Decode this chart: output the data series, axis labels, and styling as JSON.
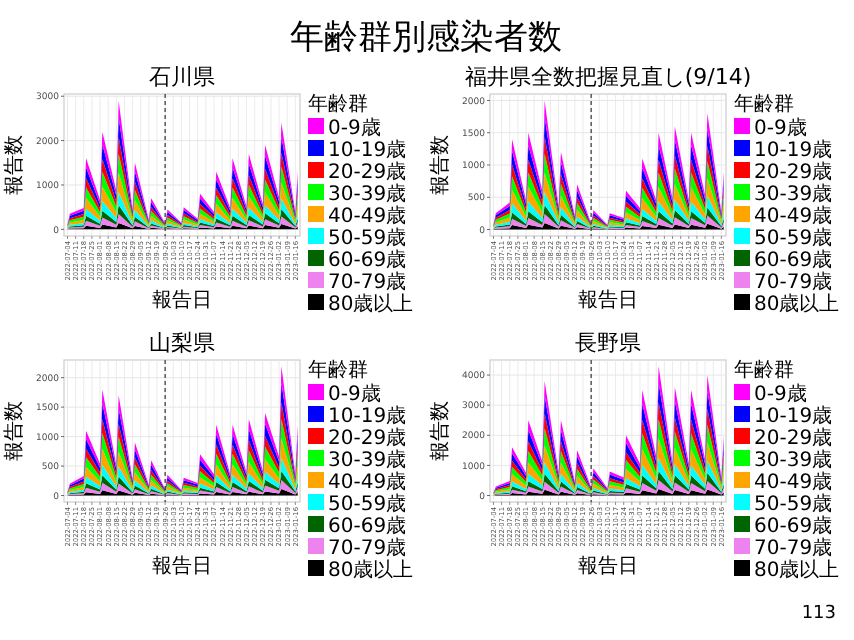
{
  "chart_data": [
    {
      "type": "other",
      "title": "年齢群別感染者数",
      "annotations": [
        "113"
      ]
    },
    {
      "type": "area",
      "stacked": true,
      "title": "石川県",
      "xlabel": "報告日",
      "ylabel": "報告数",
      "legend_title": "年齢群",
      "legend": "right",
      "grid": true,
      "x": [
        "2022-07-04",
        "2022-07-06",
        "2022-07-18",
        "2022-07-20",
        "2022-08-01",
        "2022-08-03",
        "2022-08-15",
        "2022-08-17",
        "2022-08-29",
        "2022-08-31",
        "2022-09-12",
        "2022-09-14",
        "2022-09-26",
        "2022-09-28",
        "2022-10-10",
        "2022-10-12",
        "2022-10-24",
        "2022-10-26",
        "2022-11-07",
        "2022-11-09",
        "2022-11-21",
        "2022-11-23",
        "2022-12-05",
        "2022-12-07",
        "2022-12-19",
        "2022-12-21",
        "2023-01-02",
        "2023-01-04",
        "2023-01-16",
        "2023-01-18"
      ],
      "xlim": [
        "2022-07-01",
        "2023-01-20"
      ],
      "xticks": [
        "2022-07-04",
        "2022-07-11",
        "2022-07-18",
        "2022-07-25",
        "2022-08-01",
        "2022-08-08",
        "2022-08-15",
        "2022-08-22",
        "2022-08-29",
        "2022-09-05",
        "2022-09-12",
        "2022-09-19",
        "2022-09-26",
        "2022-10-03",
        "2022-10-10",
        "2022-10-17",
        "2022-10-24",
        "2022-10-31",
        "2022-11-07",
        "2022-11-14",
        "2022-11-21",
        "2022-11-28",
        "2022-12-05",
        "2022-12-12",
        "2022-12-19",
        "2022-12-26",
        "2023-01-02",
        "2023-01-09",
        "2023-01-16"
      ],
      "ylim": [
        -150,
        3050
      ],
      "yticks": [
        0,
        1000,
        2000,
        3000
      ],
      "ref_lines": [
        {
          "axis": "x",
          "value": "2022-09-26",
          "line_style": "dashed",
          "color": "#333333"
        }
      ],
      "series": [
        {
          "name": "80歳以上",
          "color": "#000000",
          "values": [
            5,
            17,
            24,
            80,
            33,
            110,
            42,
            145,
            22,
            75,
            9,
            35,
            7,
            22,
            7,
            25,
            12,
            40,
            21,
            65,
            24,
            80,
            24,
            85,
            27,
            95,
            36,
            120,
            21,
            65
          ]
        },
        {
          "name": "70-79歳",
          "color": "#ee82ee",
          "values": [
            7,
            25,
            34,
            112,
            46,
            154,
            61,
            203,
            31,
            105,
            15,
            49,
            10,
            31,
            11,
            35,
            17,
            56,
            27,
            91,
            34,
            112,
            36,
            119,
            40,
            133,
            50,
            168,
            27,
            91
          ]
        },
        {
          "name": "60-69歳",
          "color": "#006400",
          "values": [
            7,
            24,
            34,
            112,
            46,
            154,
            61,
            203,
            31,
            105,
            15,
            49,
            9,
            31,
            11,
            35,
            17,
            56,
            27,
            91,
            34,
            112,
            36,
            119,
            40,
            133,
            50,
            168,
            27,
            91
          ]
        },
        {
          "name": "50-59歳",
          "color": "#00ffff",
          "values": [
            10,
            35,
            48,
            160,
            66,
            220,
            87,
            290,
            45,
            150,
            21,
            70,
            13,
            45,
            15,
            50,
            24,
            80,
            39,
            130,
            48,
            160,
            51,
            170,
            57,
            190,
            72,
            240,
            39,
            130
          ]
        },
        {
          "name": "40-49歳",
          "color": "#ffa500",
          "values": [
            16,
            53,
            72,
            240,
            99,
            330,
            131,
            435,
            68,
            225,
            32,
            105,
            20,
            68,
            22,
            75,
            36,
            120,
            58,
            195,
            72,
            240,
            77,
            255,
            86,
            285,
            108,
            360,
            58,
            195
          ]
        },
        {
          "name": "30-39歳",
          "color": "#00ff00",
          "values": [
            16,
            53,
            72,
            240,
            99,
            330,
            131,
            435,
            68,
            225,
            32,
            105,
            20,
            68,
            22,
            75,
            36,
            120,
            58,
            195,
            72,
            240,
            77,
            255,
            86,
            285,
            108,
            360,
            58,
            195
          ]
        },
        {
          "name": "20-29歳",
          "color": "#ff0000",
          "values": [
            14,
            45,
            62,
            208,
            86,
            286,
            113,
            377,
            58,
            195,
            27,
            91,
            18,
            58,
            20,
            65,
            31,
            104,
            51,
            169,
            62,
            208,
            66,
            221,
            74,
            247,
            94,
            312,
            51,
            169
          ]
        },
        {
          "name": "10-19歳",
          "color": "#0000ff",
          "values": [
            16,
            53,
            72,
            240,
            99,
            330,
            131,
            435,
            68,
            225,
            32,
            105,
            20,
            68,
            22,
            75,
            36,
            120,
            58,
            195,
            72,
            240,
            77,
            255,
            86,
            285,
            108,
            360,
            58,
            195
          ]
        },
        {
          "name": "0-9歳",
          "color": "#ff00ff",
          "values": [
            14,
            45,
            62,
            208,
            86,
            286,
            113,
            377,
            59,
            195,
            27,
            91,
            18,
            59,
            20,
            65,
            31,
            104,
            51,
            169,
            62,
            208,
            66,
            221,
            74,
            247,
            94,
            312,
            51,
            169
          ]
        }
      ]
    },
    {
      "type": "area",
      "stacked": true,
      "title": "福井県全数把握見直し(9/14)",
      "xlabel": "報告日",
      "ylabel": "報告数",
      "legend_title": "年齢群",
      "legend": "right",
      "grid": true,
      "x": [
        "2022-07-04",
        "2022-07-06",
        "2022-07-18",
        "2022-07-20",
        "2022-08-01",
        "2022-08-03",
        "2022-08-15",
        "2022-08-17",
        "2022-08-29",
        "2022-08-31",
        "2022-09-12",
        "2022-09-14",
        "2022-09-26",
        "2022-09-28",
        "2022-10-10",
        "2022-10-12",
        "2022-10-24",
        "2022-10-26",
        "2022-11-07",
        "2022-11-09",
        "2022-11-21",
        "2022-11-23",
        "2022-12-05",
        "2022-12-07",
        "2022-12-19",
        "2022-12-21",
        "2023-01-02",
        "2023-01-04",
        "2023-01-16",
        "2023-01-18"
      ],
      "xlim": [
        "2022-07-01",
        "2023-01-20"
      ],
      "xticks": [
        "2022-07-04",
        "2022-07-11",
        "2022-07-18",
        "2022-07-25",
        "2022-08-01",
        "2022-08-08",
        "2022-08-15",
        "2022-08-22",
        "2022-08-29",
        "2022-09-05",
        "2022-09-12",
        "2022-09-19",
        "2022-09-26",
        "2022-10-03",
        "2022-10-10",
        "2022-10-17",
        "2022-10-24",
        "2022-10-31",
        "2022-11-07",
        "2022-11-14",
        "2022-11-21",
        "2022-11-28",
        "2022-12-05",
        "2022-12-12",
        "2022-12-19",
        "2022-12-26",
        "2023-01-02",
        "2023-01-09",
        "2023-01-16"
      ],
      "ylim": [
        -100,
        2100
      ],
      "yticks": [
        0,
        500,
        1000,
        1500,
        2000
      ],
      "ref_lines": [
        {
          "axis": "x",
          "value": "2022-09-26",
          "line_style": "dashed",
          "color": "#333333"
        }
      ],
      "series": [
        {
          "name": "80歳以上",
          "color": "#000000",
          "values": [
            4,
            13,
            21,
            70,
            23,
            75,
            30,
            100,
            18,
            60,
            11,
            35,
            5,
            15,
            4,
            13,
            9,
            30,
            17,
            55,
            23,
            75,
            24,
            80,
            23,
            75,
            27,
            90,
            14,
            45
          ]
        },
        {
          "name": "70-79歳",
          "color": "#ee82ee",
          "values": [
            5,
            18,
            29,
            98,
            32,
            105,
            42,
            140,
            25,
            84,
            15,
            49,
            6,
            21,
            5,
            18,
            13,
            42,
            23,
            77,
            32,
            105,
            34,
            112,
            32,
            105,
            38,
            126,
            19,
            63
          ]
        },
        {
          "name": "60-69歳",
          "color": "#006400",
          "values": [
            5,
            18,
            29,
            98,
            32,
            105,
            42,
            140,
            25,
            84,
            15,
            49,
            6,
            21,
            5,
            18,
            13,
            42,
            23,
            77,
            32,
            105,
            34,
            112,
            32,
            105,
            38,
            126,
            19,
            63
          ]
        },
        {
          "name": "50-59歳",
          "color": "#00ffff",
          "values": [
            8,
            25,
            42,
            140,
            45,
            150,
            60,
            200,
            36,
            120,
            21,
            70,
            9,
            30,
            8,
            25,
            18,
            60,
            33,
            110,
            45,
            150,
            48,
            160,
            45,
            150,
            54,
            180,
            27,
            90
          ]
        },
        {
          "name": "40-49歳",
          "color": "#ffa500",
          "values": [
            11,
            38,
            63,
            210,
            68,
            225,
            90,
            300,
            54,
            180,
            32,
            105,
            14,
            45,
            11,
            38,
            27,
            90,
            50,
            165,
            68,
            225,
            72,
            240,
            68,
            225,
            81,
            270,
            41,
            135
          ]
        },
        {
          "name": "30-39歳",
          "color": "#00ff00",
          "values": [
            11,
            38,
            63,
            210,
            68,
            225,
            90,
            300,
            54,
            180,
            32,
            105,
            14,
            45,
            11,
            38,
            27,
            90,
            50,
            165,
            68,
            225,
            72,
            240,
            68,
            225,
            81,
            270,
            41,
            135
          ]
        },
        {
          "name": "20-29歳",
          "color": "#ff0000",
          "values": [
            10,
            33,
            55,
            182,
            59,
            195,
            78,
            260,
            47,
            156,
            27,
            91,
            12,
            39,
            10,
            33,
            23,
            78,
            43,
            143,
            59,
            195,
            62,
            208,
            59,
            195,
            70,
            234,
            35,
            117
          ]
        },
        {
          "name": "10-19歳",
          "color": "#0000ff",
          "values": [
            11,
            38,
            63,
            210,
            68,
            225,
            90,
            300,
            54,
            180,
            32,
            105,
            14,
            45,
            11,
            38,
            27,
            90,
            50,
            165,
            68,
            225,
            72,
            240,
            68,
            225,
            81,
            270,
            41,
            135
          ]
        },
        {
          "name": "0-9歳",
          "color": "#ff00ff",
          "values": [
            10,
            33,
            55,
            182,
            59,
            195,
            78,
            260,
            47,
            156,
            27,
            91,
            12,
            39,
            10,
            33,
            23,
            78,
            43,
            143,
            59,
            195,
            62,
            208,
            59,
            195,
            70,
            234,
            35,
            117
          ]
        }
      ]
    },
    {
      "type": "area",
      "stacked": true,
      "title": "山梨県",
      "xlabel": "報告日",
      "ylabel": "報告数",
      "legend_title": "年齢群",
      "legend": "right",
      "grid": true,
      "x": [
        "2022-07-04",
        "2022-07-06",
        "2022-07-18",
        "2022-07-20",
        "2022-08-01",
        "2022-08-03",
        "2022-08-15",
        "2022-08-17",
        "2022-08-29",
        "2022-08-31",
        "2022-09-12",
        "2022-09-14",
        "2022-09-26",
        "2022-09-28",
        "2022-10-10",
        "2022-10-12",
        "2022-10-24",
        "2022-10-26",
        "2022-11-07",
        "2022-11-09",
        "2022-11-21",
        "2022-11-23",
        "2022-12-05",
        "2022-12-07",
        "2022-12-19",
        "2022-12-21",
        "2023-01-02",
        "2023-01-04",
        "2023-01-16",
        "2023-01-18"
      ],
      "xlim": [
        "2022-07-01",
        "2023-01-20"
      ],
      "xticks": [
        "2022-07-04",
        "2022-07-11",
        "2022-07-18",
        "2022-07-25",
        "2022-08-01",
        "2022-08-08",
        "2022-08-15",
        "2022-08-22",
        "2022-08-29",
        "2022-09-05",
        "2022-09-12",
        "2022-09-19",
        "2022-09-26",
        "2022-10-03",
        "2022-10-10",
        "2022-10-17",
        "2022-10-24",
        "2022-10-31",
        "2022-11-07",
        "2022-11-14",
        "2022-11-21",
        "2022-11-28",
        "2022-12-05",
        "2022-12-12",
        "2022-12-19",
        "2022-12-26",
        "2023-01-02",
        "2023-01-09",
        "2023-01-16"
      ],
      "ylim": [
        -110,
        2300
      ],
      "yticks": [
        0,
        500,
        1000,
        1500,
        2000
      ],
      "ref_lines": [
        {
          "axis": "x",
          "value": "2022-09-26",
          "line_style": "dashed",
          "color": "#333333"
        }
      ],
      "series": [
        {
          "name": "80歳以上",
          "color": "#000000",
          "values": [
            3,
            10,
            17,
            55,
            27,
            90,
            26,
            85,
            14,
            45,
            9,
            30,
            5,
            18,
            5,
            15,
            11,
            35,
            18,
            60,
            18,
            60,
            20,
            65,
            21,
            70,
            33,
            110,
            18,
            60
          ]
        },
        {
          "name": "70-79歳",
          "color": "#ee82ee",
          "values": [
            4,
            14,
            23,
            77,
            38,
            126,
            36,
            119,
            19,
            63,
            13,
            42,
            7,
            25,
            6,
            21,
            15,
            49,
            25,
            84,
            25,
            84,
            27,
            91,
            29,
            98,
            46,
            154,
            25,
            84
          ]
        },
        {
          "name": "60-69歳",
          "color": "#006400",
          "values": [
            4,
            14,
            23,
            77,
            38,
            126,
            36,
            119,
            19,
            63,
            13,
            42,
            7,
            25,
            6,
            21,
            15,
            49,
            25,
            84,
            25,
            84,
            27,
            91,
            29,
            98,
            46,
            154,
            25,
            84
          ]
        },
        {
          "name": "50-59歳",
          "color": "#00ffff",
          "values": [
            6,
            20,
            33,
            110,
            54,
            180,
            51,
            170,
            27,
            90,
            18,
            60,
            11,
            35,
            9,
            30,
            21,
            70,
            36,
            120,
            36,
            120,
            39,
            130,
            42,
            140,
            66,
            220,
            36,
            120
          ]
        },
        {
          "name": "40-49歳",
          "color": "#ffa500",
          "values": [
            9,
            30,
            50,
            165,
            81,
            270,
            77,
            255,
            41,
            135,
            27,
            90,
            16,
            53,
            14,
            45,
            32,
            105,
            54,
            180,
            54,
            180,
            59,
            195,
            63,
            210,
            99,
            330,
            54,
            180
          ]
        },
        {
          "name": "30-39歳",
          "color": "#00ff00",
          "values": [
            9,
            30,
            50,
            165,
            81,
            270,
            77,
            255,
            41,
            135,
            27,
            90,
            16,
            53,
            14,
            45,
            32,
            105,
            54,
            180,
            54,
            180,
            59,
            195,
            63,
            210,
            99,
            330,
            54,
            180
          ]
        },
        {
          "name": "20-29歳",
          "color": "#ff0000",
          "values": [
            8,
            26,
            43,
            143,
            70,
            234,
            66,
            221,
            35,
            117,
            23,
            78,
            14,
            46,
            12,
            39,
            27,
            91,
            47,
            156,
            47,
            156,
            51,
            169,
            55,
            182,
            86,
            286,
            47,
            156
          ]
        },
        {
          "name": "10-19歳",
          "color": "#0000ff",
          "values": [
            9,
            30,
            50,
            165,
            81,
            270,
            77,
            255,
            41,
            135,
            27,
            90,
            16,
            53,
            14,
            45,
            32,
            105,
            54,
            180,
            54,
            180,
            59,
            195,
            63,
            210,
            99,
            330,
            54,
            180
          ]
        },
        {
          "name": "0-9歳",
          "color": "#ff00ff",
          "values": [
            8,
            26,
            43,
            143,
            70,
            234,
            66,
            221,
            35,
            117,
            23,
            78,
            14,
            46,
            12,
            39,
            27,
            91,
            47,
            156,
            47,
            156,
            51,
            169,
            55,
            182,
            86,
            286,
            47,
            156
          ]
        }
      ]
    },
    {
      "type": "area",
      "stacked": true,
      "title": "長野県",
      "xlabel": "報告日",
      "ylabel": "報告数",
      "legend_title": "年齢群",
      "legend": "right",
      "grid": true,
      "x": [
        "2022-07-04",
        "2022-07-06",
        "2022-07-18",
        "2022-07-20",
        "2022-08-01",
        "2022-08-03",
        "2022-08-15",
        "2022-08-17",
        "2022-08-29",
        "2022-08-31",
        "2022-09-12",
        "2022-09-14",
        "2022-09-26",
        "2022-09-28",
        "2022-10-10",
        "2022-10-12",
        "2022-10-24",
        "2022-10-26",
        "2022-11-07",
        "2022-11-09",
        "2022-11-21",
        "2022-11-23",
        "2022-12-05",
        "2022-12-07",
        "2022-12-19",
        "2022-12-21",
        "2023-01-02",
        "2023-01-04",
        "2023-01-16",
        "2023-01-18"
      ],
      "xlim": [
        "2022-07-01",
        "2023-01-20"
      ],
      "xticks": [
        "2022-07-04",
        "2022-07-11",
        "2022-07-18",
        "2022-07-25",
        "2022-08-01",
        "2022-08-08",
        "2022-08-15",
        "2022-08-22",
        "2022-08-29",
        "2022-09-05",
        "2022-09-12",
        "2022-09-19",
        "2022-09-26",
        "2022-10-03",
        "2022-10-10",
        "2022-10-17",
        "2022-10-24",
        "2022-10-31",
        "2022-11-07",
        "2022-11-14",
        "2022-11-21",
        "2022-11-28",
        "2022-12-05",
        "2022-12-12",
        "2022-12-19",
        "2022-12-26",
        "2023-01-02",
        "2023-01-09",
        "2023-01-16"
      ],
      "ylim": [
        -215,
        4500
      ],
      "yticks": [
        0,
        1000,
        2000,
        3000,
        4000
      ],
      "ref_lines": [
        {
          "axis": "x",
          "value": "2022-09-26",
          "line_style": "dashed",
          "color": "#333333"
        }
      ],
      "series": [
        {
          "name": "80歳以上",
          "color": "#000000",
          "values": [
            5,
            15,
            24,
            80,
            38,
            125,
            57,
            190,
            38,
            125,
            23,
            75,
            14,
            45,
            12,
            40,
            30,
            100,
            53,
            175,
            65,
            215,
            54,
            180,
            53,
            175,
            60,
            200,
            30,
            100
          ]
        },
        {
          "name": "70-79歳",
          "color": "#ee82ee",
          "values": [
            6,
            21,
            34,
            112,
            53,
            175,
            80,
            266,
            53,
            175,
            32,
            105,
            19,
            63,
            17,
            56,
            42,
            140,
            74,
            245,
            90,
            301,
            76,
            252,
            74,
            245,
            84,
            280,
            42,
            140
          ]
        },
        {
          "name": "60-69歳",
          "color": "#006400",
          "values": [
            6,
            21,
            34,
            112,
            53,
            175,
            80,
            266,
            53,
            175,
            32,
            105,
            19,
            63,
            17,
            56,
            42,
            140,
            74,
            245,
            90,
            301,
            76,
            252,
            74,
            245,
            84,
            280,
            42,
            140
          ]
        },
        {
          "name": "50-59歳",
          "color": "#00ffff",
          "values": [
            9,
            30,
            48,
            160,
            75,
            250,
            114,
            380,
            75,
            250,
            45,
            150,
            27,
            90,
            24,
            80,
            60,
            200,
            105,
            350,
            129,
            430,
            108,
            360,
            105,
            350,
            120,
            400,
            60,
            200
          ]
        },
        {
          "name": "40-49歳",
          "color": "#ffa500",
          "values": [
            14,
            45,
            72,
            240,
            113,
            375,
            171,
            570,
            113,
            375,
            68,
            225,
            41,
            135,
            36,
            120,
            90,
            300,
            158,
            525,
            194,
            645,
            162,
            540,
            158,
            525,
            180,
            600,
            90,
            300
          ]
        },
        {
          "name": "30-39歳",
          "color": "#00ff00",
          "values": [
            14,
            45,
            72,
            240,
            113,
            375,
            171,
            570,
            113,
            375,
            68,
            225,
            41,
            135,
            36,
            120,
            90,
            300,
            158,
            525,
            194,
            645,
            162,
            540,
            158,
            525,
            180,
            600,
            90,
            300
          ]
        },
        {
          "name": "20-29歳",
          "color": "#ff0000",
          "values": [
            12,
            39,
            62,
            208,
            98,
            325,
            148,
            494,
            98,
            325,
            59,
            195,
            35,
            117,
            31,
            104,
            78,
            260,
            137,
            455,
            168,
            559,
            140,
            468,
            137,
            455,
            156,
            520,
            78,
            260
          ]
        },
        {
          "name": "10-19歳",
          "color": "#0000ff",
          "values": [
            14,
            45,
            72,
            240,
            113,
            375,
            171,
            570,
            113,
            375,
            68,
            225,
            41,
            135,
            36,
            120,
            90,
            300,
            158,
            525,
            194,
            645,
            162,
            540,
            158,
            525,
            180,
            600,
            90,
            300
          ]
        },
        {
          "name": "0-9歳",
          "color": "#ff00ff",
          "values": [
            12,
            39,
            62,
            208,
            98,
            325,
            148,
            494,
            98,
            325,
            59,
            195,
            35,
            117,
            31,
            104,
            78,
            260,
            137,
            455,
            168,
            559,
            140,
            468,
            137,
            455,
            156,
            520,
            78,
            260
          ]
        }
      ]
    }
  ]
}
